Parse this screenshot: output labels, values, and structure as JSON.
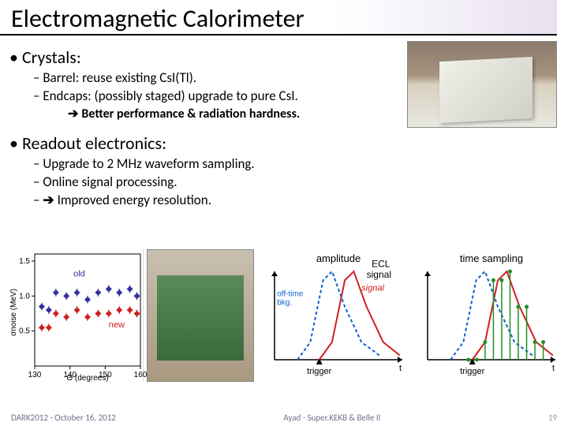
{
  "title": "Electromagnetic Calorimeter",
  "bullets": {
    "crystals": {
      "heading": "Crystals:",
      "barrel": "Barrel: reuse existing CsI(Tl).",
      "endcaps": "Endcaps: (possibly staged) upgrade to pure CsI.",
      "better": "Better performance & radiation hardness."
    },
    "readout": {
      "heading": "Readout electronics:",
      "upgrade": "Upgrade to 2 MHz waveform sampling.",
      "online": "Online signal processing.",
      "improved": "Improved energy resolution."
    }
  },
  "chart1": {
    "type": "scatter",
    "ylabel": "σnoise (MeV)",
    "xlabel": "Θ (degrees)",
    "xlim": [
      130,
      160
    ],
    "ylim": [
      0,
      1.6
    ],
    "xticks": [
      130,
      140,
      150,
      160
    ],
    "yticks": [
      0.5,
      1.0,
      1.5
    ],
    "label_old": "old",
    "label_new": "new",
    "label_old_color": "#3030a0",
    "label_new_color": "#d02020",
    "series": [
      {
        "name": "old",
        "color": "#3030a0",
        "marker": "diamond",
        "points": [
          [
            132,
            0.85
          ],
          [
            134,
            0.8
          ],
          [
            136,
            1.05
          ],
          [
            139,
            1.0
          ],
          [
            142,
            1.05
          ],
          [
            145,
            0.95
          ],
          [
            148,
            1.05
          ],
          [
            151,
            1.1
          ],
          [
            154,
            1.05
          ],
          [
            157,
            1.1
          ],
          [
            159,
            1.0
          ]
        ]
      },
      {
        "name": "new",
        "color": "#d02020",
        "marker": "diamond",
        "points": [
          [
            132,
            0.55
          ],
          [
            134,
            0.55
          ],
          [
            136,
            0.75
          ],
          [
            139,
            0.7
          ],
          [
            142,
            0.8
          ],
          [
            145,
            0.7
          ],
          [
            148,
            0.75
          ],
          [
            151,
            0.75
          ],
          [
            154,
            0.8
          ],
          [
            157,
            0.8
          ],
          [
            159,
            0.75
          ]
        ]
      }
    ],
    "grid_color": "#cccccc",
    "axis_color": "#000000",
    "background_color": "#ffffff",
    "label_fontsize": 10
  },
  "chart2": {
    "type": "line",
    "title": "amplitude",
    "xlabel": "t",
    "xmarker": "trigger",
    "curves": [
      {
        "name": "signal",
        "color": "#d02020",
        "label": "signal",
        "width": 2,
        "points": [
          [
            0.35,
            0
          ],
          [
            0.45,
            0.2
          ],
          [
            0.55,
            0.9
          ],
          [
            0.62,
            1.0
          ],
          [
            0.72,
            0.6
          ],
          [
            0.85,
            0.2
          ],
          [
            0.98,
            0.05
          ]
        ]
      },
      {
        "name": "off-time-bkg",
        "color": "#1060d0",
        "label": "off-time bkg.",
        "width": 2,
        "dash": "4,3",
        "points": [
          [
            0.18,
            0
          ],
          [
            0.28,
            0.2
          ],
          [
            0.38,
            0.9
          ],
          [
            0.45,
            1.0
          ],
          [
            0.55,
            0.6
          ],
          [
            0.68,
            0.2
          ],
          [
            0.82,
            0.05
          ]
        ]
      }
    ],
    "ecl_label": "ECL\nsignal",
    "axis_color": "#000000",
    "title_fontsize": 13,
    "label_fontsize": 11
  },
  "chart3": {
    "type": "line",
    "title": "time sampling",
    "xlabel": "t",
    "xmarker": "trigger",
    "curves": [
      {
        "name": "signal",
        "color": "#d02020",
        "width": 2,
        "points": [
          [
            0.35,
            0
          ],
          [
            0.45,
            0.2
          ],
          [
            0.55,
            0.9
          ],
          [
            0.62,
            1.0
          ],
          [
            0.72,
            0.6
          ],
          [
            0.85,
            0.2
          ],
          [
            0.98,
            0.05
          ]
        ]
      },
      {
        "name": "off-time-bkg",
        "color": "#1060d0",
        "width": 2,
        "dash": "4,3",
        "points": [
          [
            0.18,
            0
          ],
          [
            0.28,
            0.2
          ],
          [
            0.38,
            0.9
          ],
          [
            0.45,
            1.0
          ],
          [
            0.55,
            0.6
          ],
          [
            0.68,
            0.2
          ],
          [
            0.82,
            0.05
          ]
        ]
      }
    ],
    "samples": {
      "color": "#209020",
      "n": 10,
      "xstart": 0.32,
      "xstep": 0.065
    },
    "axis_color": "#000000",
    "title_fontsize": 13,
    "label_fontsize": 11
  },
  "footer": {
    "left": "DARK2012 - October 16, 2012",
    "center": "Ayad - Super.KEKB & Belle II",
    "page": "19"
  },
  "colors": {
    "title_underline": "#000000",
    "title_gradient_end": "#e8e0f0",
    "footer_text": "#7a6a8a"
  }
}
